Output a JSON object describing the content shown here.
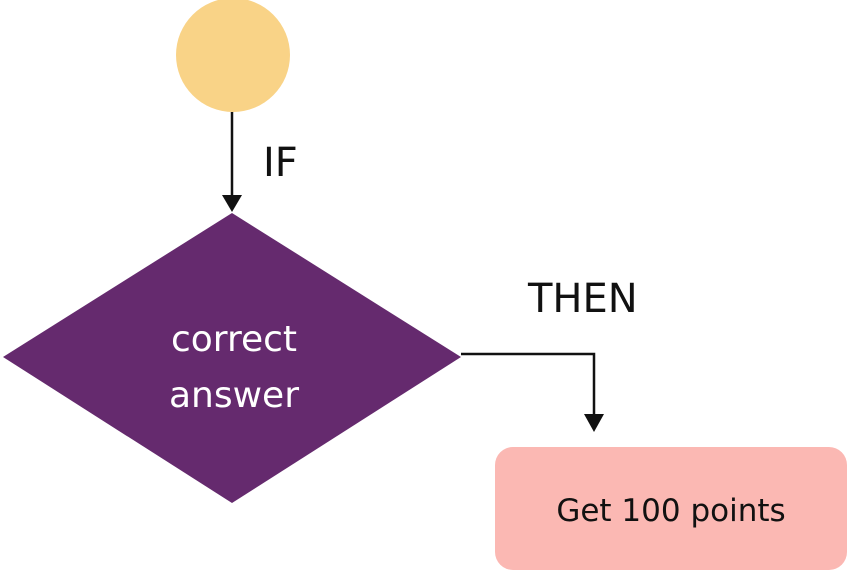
{
  "colors": {
    "start_fill": "#F9D387",
    "decision_fill": "#652A6E",
    "decision_text": "#FFFFFF",
    "result_fill": "#FBB8B3",
    "line": "#111111"
  },
  "flow": {
    "if_label": "IF",
    "then_label": "THEN",
    "decision": {
      "line1": "correct",
      "line2": "answer"
    },
    "result": {
      "label": "Get 100 points"
    }
  }
}
